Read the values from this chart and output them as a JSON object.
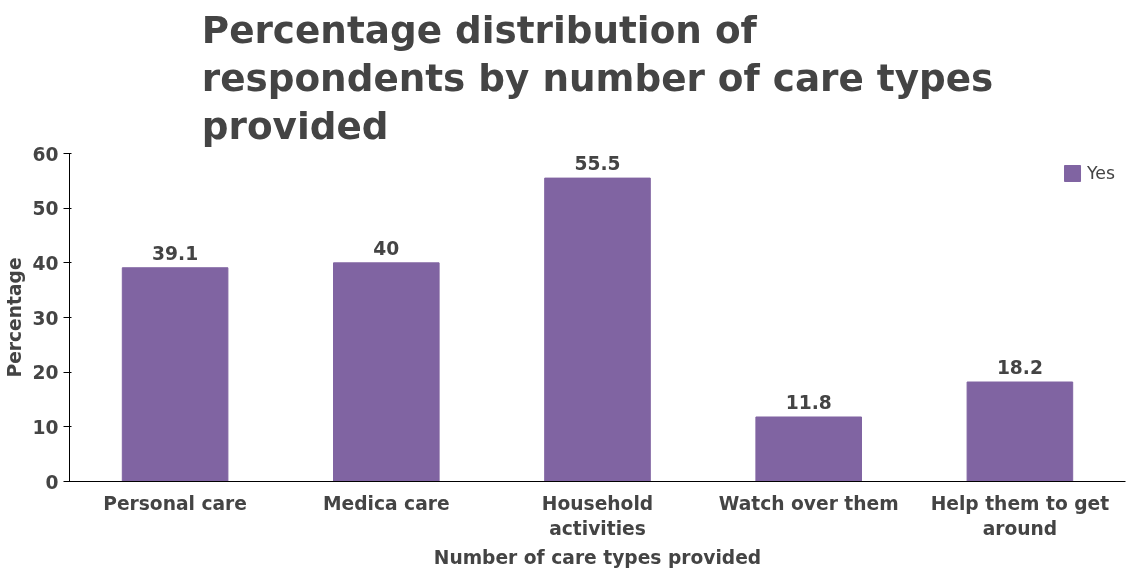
{
  "chart_data": {
    "type": "bar",
    "title": "Percentage distribution of respondents by number of care types provided",
    "xlabel": "Number of care types provided",
    "ylabel": "Percentage",
    "categories": [
      "Personal care",
      "Medica care",
      "Household activities",
      "Watch over them",
      "Help them to get around"
    ],
    "series": [
      {
        "name": "Yes",
        "color": "#8064a2",
        "values": [
          39.1,
          40,
          55.5,
          11.8,
          18.2
        ]
      }
    ],
    "ylim": [
      0,
      60
    ],
    "yticks": [
      0,
      10,
      20,
      30,
      40,
      50,
      60
    ],
    "data_labels": true,
    "legend": "top right",
    "grid": false
  }
}
